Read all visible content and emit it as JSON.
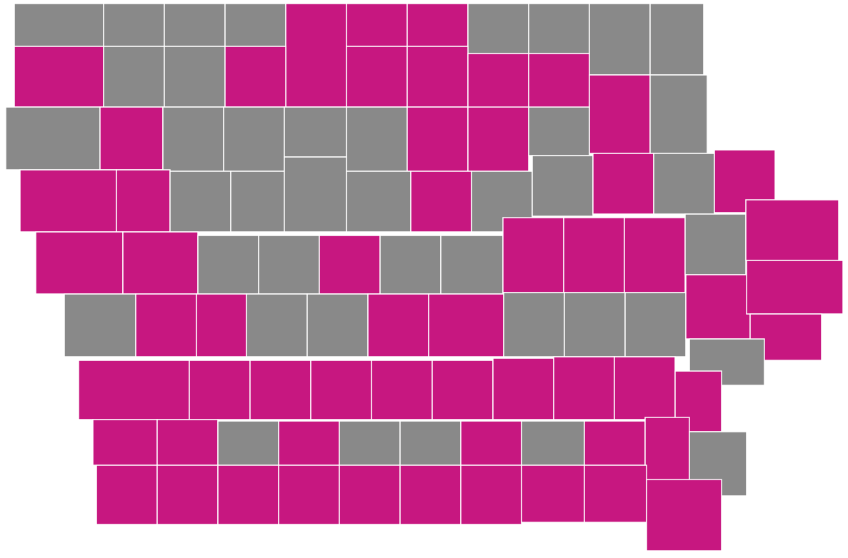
{
  "colors": [
    "#c71780",
    "#898989"
  ]
}
